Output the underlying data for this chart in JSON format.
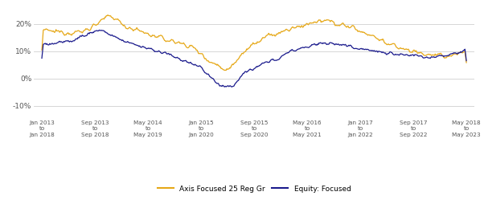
{
  "background_color": "#ffffff",
  "grid_color": "#d0d0d0",
  "ylim": [
    -0.145,
    0.265
  ],
  "yticks": [
    -0.1,
    0.0,
    0.1,
    0.2
  ],
  "ytick_labels": [
    "-10%",
    "0%",
    "10%",
    "20%"
  ],
  "xtick_labels": [
    "Jan 2013\nto\nJan 2018",
    "Sep 2013\nto\nSep 2018",
    "May 2014\nto\nMay 2019",
    "Jan 2015\nto\nJan 2020",
    "Sep 2015\nto\nSep 2020",
    "May 2016\nto\nMay 2021",
    "Jan 2017\nto\nJan 2022",
    "Sep 2017\nto\nSep 2022",
    "May 2018\nto\nMay 2023"
  ],
  "legend_labels": [
    "Axis Focused 25 Reg Gr",
    "Equity: Focused"
  ],
  "line1_color": "#E6A817",
  "line2_color": "#1a1a8c",
  "line_width": 0.9
}
